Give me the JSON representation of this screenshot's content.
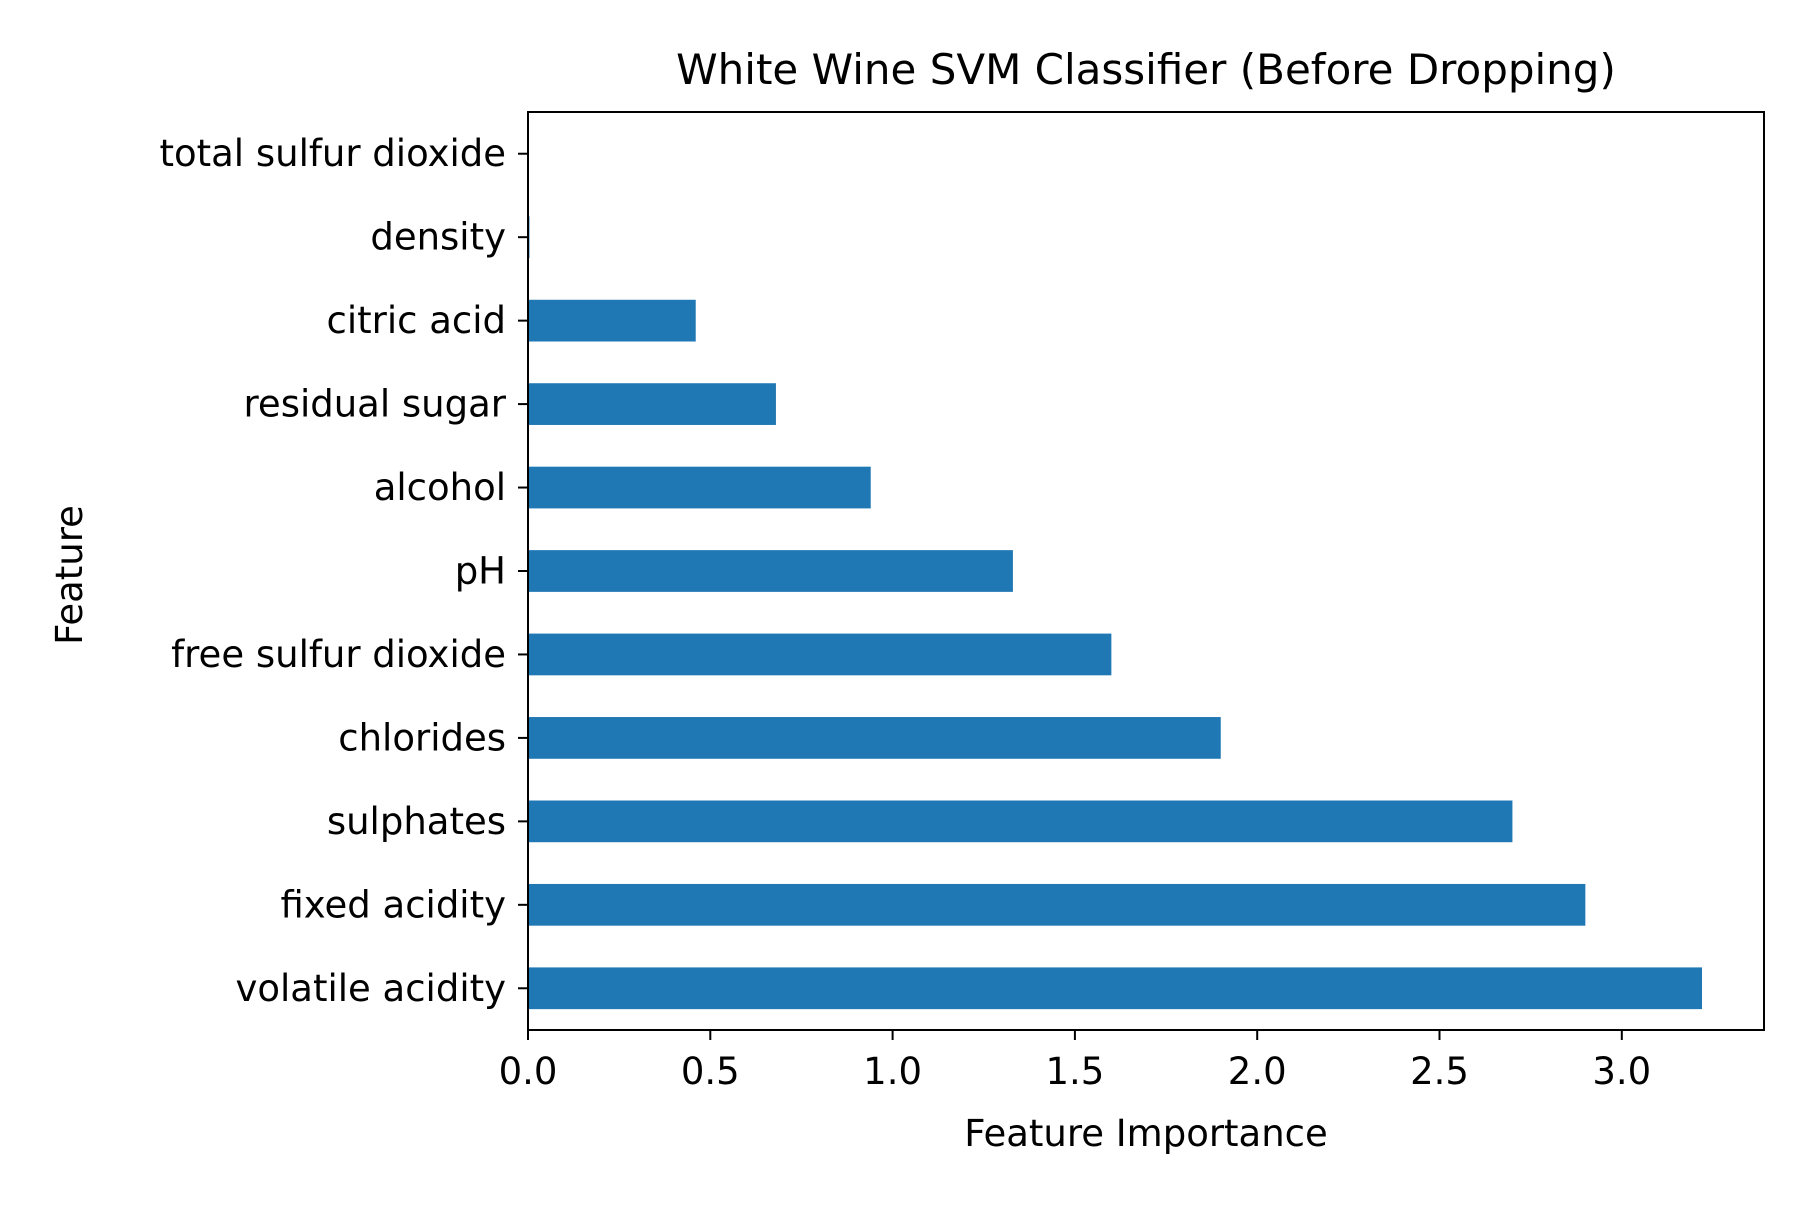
{
  "chart_data": {
    "type": "bar",
    "orientation": "horizontal",
    "title": "White Wine SVM Classifier (Before Dropping)",
    "xlabel": "Feature Importance",
    "ylabel": "Feature",
    "categories": [
      "volatile acidity",
      "fixed acidity",
      "sulphates",
      "chlorides",
      "free sulfur dioxide",
      "pH",
      "alcohol",
      "residual sugar",
      "citric acid",
      "density",
      "total sulfur dioxide"
    ],
    "values": [
      3.22,
      2.9,
      2.7,
      1.9,
      1.6,
      1.33,
      0.94,
      0.68,
      0.46,
      0.004,
      0.0
    ],
    "xlim": [
      0,
      3.39
    ],
    "xticks": [
      0.0,
      0.5,
      1.0,
      1.5,
      2.0,
      2.5,
      3.0
    ],
    "xtick_labels": [
      "0.0",
      "0.5",
      "1.0",
      "1.5",
      "2.0",
      "2.5",
      "3.0"
    ],
    "grid": false,
    "legend": "none",
    "bar_color": "#1f77b4"
  }
}
